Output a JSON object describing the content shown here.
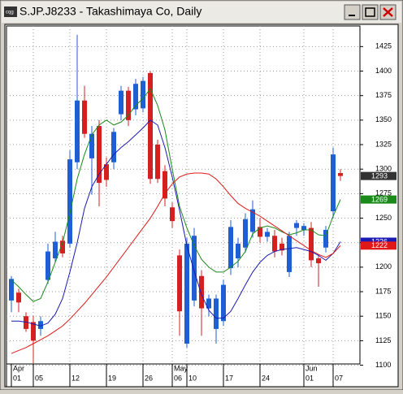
{
  "window": {
    "title": "S.JP.J8233 - Takashimaya Co, Daily"
  },
  "chart_data": {
    "type": "candlestick",
    "up_color": "#1e5fd6",
    "down_color": "#d42020",
    "categories": [
      "01",
      null,
      null,
      "05",
      null,
      null,
      null,
      null,
      "12",
      null,
      null,
      null,
      null,
      "19",
      null,
      null,
      null,
      null,
      "26",
      null,
      null,
      null,
      "06",
      null,
      "10",
      null,
      null,
      null,
      null,
      "17",
      null,
      null,
      null,
      null,
      "24",
      null,
      null,
      null,
      null,
      null,
      "01",
      null,
      null,
      null,
      "07",
      null
    ],
    "months": [
      "Apr",
      null,
      null,
      null,
      null,
      null,
      null,
      null,
      null,
      null,
      null,
      null,
      null,
      null,
      null,
      null,
      null,
      null,
      null,
      null,
      null,
      null,
      "May",
      null,
      null,
      null,
      null,
      null,
      null,
      null,
      null,
      null,
      null,
      null,
      null,
      null,
      null,
      null,
      null,
      null,
      "Jun",
      null,
      null,
      null,
      null,
      null
    ],
    "open": [
      1166,
      1174,
      1150,
      1144,
      1137,
      1187,
      1209,
      1227,
      1224,
      1307,
      1370,
      1311,
      1344,
      1305,
      1307,
      1356,
      1380,
      1361,
      1362,
      1398,
      1325,
      1298,
      1261,
      1212,
      1122,
      1166,
      1191,
      1158,
      1137,
      1145,
      1199,
      1209,
      1220,
      1236,
      1241,
      1231,
      1232,
      1224,
      1195,
      1240,
      1238,
      1240,
      1209,
      1220,
      1257,
      1296
    ],
    "high": [
      1191,
      1178,
      1154,
      1150,
      1150,
      1224,
      1236,
      1232,
      1319,
      1437,
      1385,
      1344,
      1350,
      1312,
      1342,
      1385,
      1384,
      1392,
      1394,
      1400,
      1330,
      1304,
      1266,
      1218,
      1230,
      1240,
      1197,
      1172,
      1172,
      1187,
      1248,
      1230,
      1255,
      1268,
      1250,
      1240,
      1238,
      1230,
      1236,
      1248,
      1245,
      1246,
      1213,
      1242,
      1322,
      1300
    ],
    "low": [
      1154,
      1154,
      1134,
      1102,
      1130,
      1183,
      1205,
      1210,
      1220,
      1300,
      1332,
      1274,
      1262,
      1282,
      1300,
      1350,
      1344,
      1355,
      1358,
      1285,
      1286,
      1262,
      1240,
      1130,
      1118,
      1160,
      1130,
      1150,
      1122,
      1140,
      1192,
      1200,
      1215,
      1230,
      1225,
      1226,
      1210,
      1212,
      1190,
      1232,
      1232,
      1200,
      1180,
      1215,
      1250,
      1288
    ],
    "close": [
      1188,
      1164,
      1137,
      1125,
      1145,
      1216,
      1226,
      1214,
      1310,
      1370,
      1336,
      1336,
      1286,
      1289,
      1338,
      1380,
      1350,
      1387,
      1390,
      1290,
      1290,
      1270,
      1247,
      1155,
      1224,
      1232,
      1158,
      1168,
      1168,
      1182,
      1241,
      1224,
      1249,
      1259,
      1231,
      1236,
      1216,
      1217,
      1232,
      1245,
      1242,
      1207,
      1204,
      1238,
      1315,
      1293
    ],
    "lines": [
      {
        "color": "#1a8a1a",
        "values": [
          1187,
          1180,
          1172,
          1165,
          1168,
          1185,
          1205,
          1225,
          1255,
          1290,
          1315,
          1335,
          1345,
          1350,
          1345,
          1348,
          1355,
          1365,
          1372,
          1382,
          1365,
          1340,
          1300,
          1262,
          1240,
          1222,
          1208,
          1200,
          1195,
          1195,
          1200,
          1206,
          1216,
          1234,
          1240,
          1242,
          1240,
          1236,
          1233,
          1235,
          1238,
          1238,
          1233,
          1232,
          1252,
          1269
        ]
      },
      {
        "color": "#1a1ab4",
        "values": [
          1145,
          1145,
          1144,
          1142,
          1140,
          1143,
          1152,
          1168,
          1195,
          1225,
          1260,
          1282,
          1295,
          1305,
          1315,
          1322,
          1328,
          1335,
          1342,
          1350,
          1345,
          1322,
          1292,
          1258,
          1222,
          1196,
          1172,
          1156,
          1148,
          1148,
          1155,
          1168,
          1182,
          1195,
          1205,
          1212,
          1216,
          1218,
          1219,
          1220,
          1218,
          1216,
          1212,
          1207,
          1214,
          1226
        ]
      },
      {
        "color": "#e01818",
        "values": [
          1112,
          1115,
          1118,
          1122,
          1126,
          1130,
          1135,
          1140,
          1147,
          1155,
          1163,
          1172,
          1181,
          1190,
          1200,
          1210,
          1220,
          1230,
          1240,
          1250,
          1262,
          1275,
          1285,
          1292,
          1295,
          1296,
          1296,
          1295,
          1290,
          1282,
          1273,
          1265,
          1260,
          1256,
          1252,
          1247,
          1242,
          1237,
          1232,
          1227,
          1222,
          1217,
          1213,
          1210,
          1214,
          1222
        ]
      }
    ],
    "last_tag_color": "#333333",
    "ylim": [
      1093,
      1446
    ],
    "yticks": [
      1100,
      1125,
      1150,
      1175,
      1200,
      1225,
      1250,
      1275,
      1300,
      1325,
      1350,
      1375,
      1400,
      1425
    ],
    "grid": true
  }
}
